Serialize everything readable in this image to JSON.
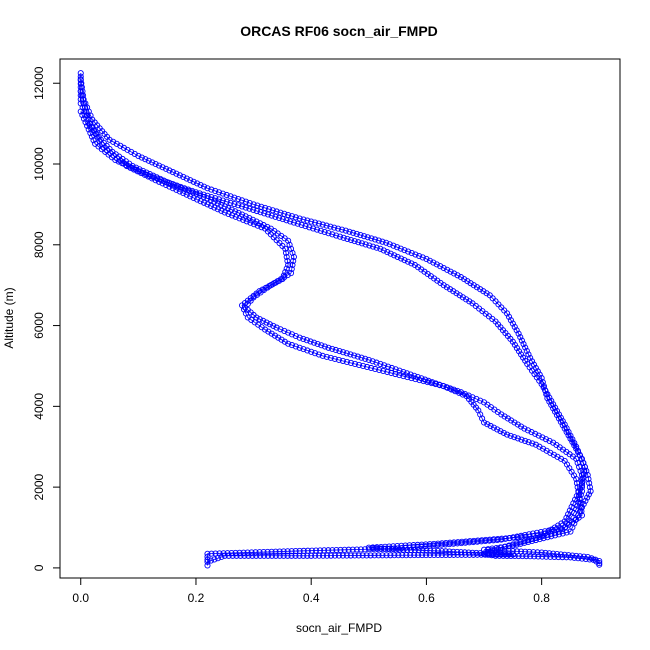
{
  "chart_data": {
    "type": "scatter",
    "title": "ORCAS RF06 socn_air_FMPD",
    "xlabel": "socn_air_FMPD",
    "ylabel": "Altitude (m)",
    "xlim": [
      -0.036,
      0.936
    ],
    "ylim": [
      -250,
      12600
    ],
    "xticks": [
      0.0,
      0.2,
      0.4,
      0.6,
      0.8
    ],
    "xtick_labels": [
      "0.0",
      "0.2",
      "0.4",
      "0.6",
      "0.8"
    ],
    "yticks": [
      0,
      2000,
      4000,
      6000,
      8000,
      10000,
      12000
    ],
    "ytick_labels": [
      "0",
      "2000",
      "4000",
      "6000",
      "8000",
      "10000",
      "12000"
    ],
    "grid": false,
    "marker": "open-circle",
    "color": "#0000ff",
    "series": [
      {
        "segments": [
          [
            [
              0.0,
              12250
            ],
            [
              0.0,
              11900
            ],
            [
              0.0,
              11500
            ],
            [
              0.01,
              11200
            ],
            [
              0.02,
              10900
            ],
            [
              0.035,
              10600
            ],
            [
              0.055,
              10300
            ],
            [
              0.09,
              9950
            ],
            [
              0.15,
              9550
            ],
            [
              0.22,
              9150
            ],
            [
              0.28,
              8750
            ],
            [
              0.33,
              8400
            ],
            [
              0.36,
              8100
            ],
            [
              0.37,
              7700
            ],
            [
              0.365,
              7300
            ],
            [
              0.33,
              7000
            ],
            [
              0.3,
              6700
            ],
            [
              0.285,
              6450
            ],
            [
              0.305,
              6200
            ],
            [
              0.34,
              5950
            ],
            [
              0.38,
              5700
            ],
            [
              0.43,
              5450
            ],
            [
              0.5,
              5150
            ],
            [
              0.56,
              4850
            ],
            [
              0.61,
              4600
            ],
            [
              0.66,
              4350
            ],
            [
              0.7,
              4100
            ],
            [
              0.73,
              3800
            ],
            [
              0.77,
              3450
            ],
            [
              0.82,
              3100
            ],
            [
              0.86,
              2700
            ],
            [
              0.87,
              2300
            ],
            [
              0.87,
              1900
            ],
            [
              0.86,
              1450
            ],
            [
              0.84,
              1000
            ],
            [
              0.73,
              700
            ],
            [
              0.55,
              480
            ],
            [
              0.38,
              420
            ],
            [
              0.22,
              350
            ],
            [
              0.22,
              200
            ],
            [
              0.22,
              60
            ]
          ],
          [
            [
              0.0,
              12100
            ],
            [
              0.005,
              11600
            ],
            [
              0.02,
              11100
            ],
            [
              0.05,
              10600
            ],
            [
              0.1,
              10200
            ],
            [
              0.16,
              9800
            ],
            [
              0.22,
              9400
            ],
            [
              0.3,
              9000
            ],
            [
              0.38,
              8650
            ],
            [
              0.46,
              8350
            ],
            [
              0.53,
              8050
            ],
            [
              0.6,
              7650
            ],
            [
              0.66,
              7200
            ],
            [
              0.71,
              6750
            ],
            [
              0.74,
              6300
            ],
            [
              0.76,
              5800
            ],
            [
              0.78,
              5200
            ],
            [
              0.8,
              4700
            ],
            [
              0.81,
              4200
            ],
            [
              0.83,
              3700
            ],
            [
              0.85,
              3200
            ],
            [
              0.87,
              2700
            ],
            [
              0.88,
              2300
            ],
            [
              0.885,
              1900
            ],
            [
              0.87,
              1500
            ],
            [
              0.86,
              1200
            ],
            [
              0.85,
              900
            ],
            [
              0.75,
              550
            ],
            [
              0.7,
              450
            ],
            [
              0.8,
              380
            ],
            [
              0.88,
              270
            ],
            [
              0.9,
              170
            ],
            [
              0.9,
              80
            ]
          ],
          [
            [
              0.0,
              11800
            ],
            [
              0.015,
              11000
            ],
            [
              0.04,
              10400
            ],
            [
              0.08,
              9950
            ],
            [
              0.13,
              9600
            ],
            [
              0.19,
              9200
            ],
            [
              0.25,
              8800
            ],
            [
              0.32,
              8400
            ],
            [
              0.355,
              7900
            ],
            [
              0.36,
              7500
            ],
            [
              0.35,
              7150
            ],
            [
              0.31,
              6850
            ],
            [
              0.28,
              6500
            ],
            [
              0.29,
              6200
            ],
            [
              0.32,
              5900
            ],
            [
              0.36,
              5550
            ],
            [
              0.42,
              5250
            ],
            [
              0.49,
              5000
            ],
            [
              0.56,
              4750
            ],
            [
              0.63,
              4500
            ],
            [
              0.67,
              4250
            ],
            [
              0.69,
              3900
            ],
            [
              0.7,
              3600
            ],
            [
              0.74,
              3300
            ],
            [
              0.79,
              3050
            ],
            [
              0.84,
              2650
            ],
            [
              0.86,
              2200
            ],
            [
              0.865,
              1800
            ],
            [
              0.87,
              1300
            ],
            [
              0.83,
              900
            ],
            [
              0.73,
              500
            ],
            [
              0.7,
              340
            ],
            [
              0.72,
              300
            ],
            [
              0.78,
              290
            ],
            [
              0.85,
              260
            ],
            [
              0.89,
              200
            ],
            [
              0.9,
              120
            ]
          ],
          [
            [
              0.0,
              11300
            ],
            [
              0.025,
              10500
            ],
            [
              0.06,
              10100
            ],
            [
              0.12,
              9700
            ],
            [
              0.2,
              9300
            ],
            [
              0.28,
              8950
            ],
            [
              0.37,
              8550
            ],
            [
              0.45,
              8200
            ],
            [
              0.52,
              7900
            ],
            [
              0.58,
              7500
            ],
            [
              0.63,
              7000
            ],
            [
              0.68,
              6550
            ],
            [
              0.72,
              6100
            ],
            [
              0.75,
              5600
            ],
            [
              0.775,
              5050
            ],
            [
              0.8,
              4550
            ],
            [
              0.82,
              4050
            ],
            [
              0.84,
              3550
            ],
            [
              0.86,
              3000
            ],
            [
              0.875,
              2500
            ],
            [
              0.87,
              2050
            ],
            [
              0.855,
              1600
            ],
            [
              0.84,
              1150
            ],
            [
              0.8,
              800
            ],
            [
              0.62,
              600
            ],
            [
              0.5,
              500
            ],
            [
              0.54,
              460
            ],
            [
              0.62,
              420
            ],
            [
              0.7,
              360
            ],
            [
              0.75,
              330
            ],
            [
              0.62,
              320
            ],
            [
              0.4,
              300
            ],
            [
              0.25,
              300
            ],
            [
              0.22,
              150
            ]
          ]
        ]
      }
    ]
  }
}
